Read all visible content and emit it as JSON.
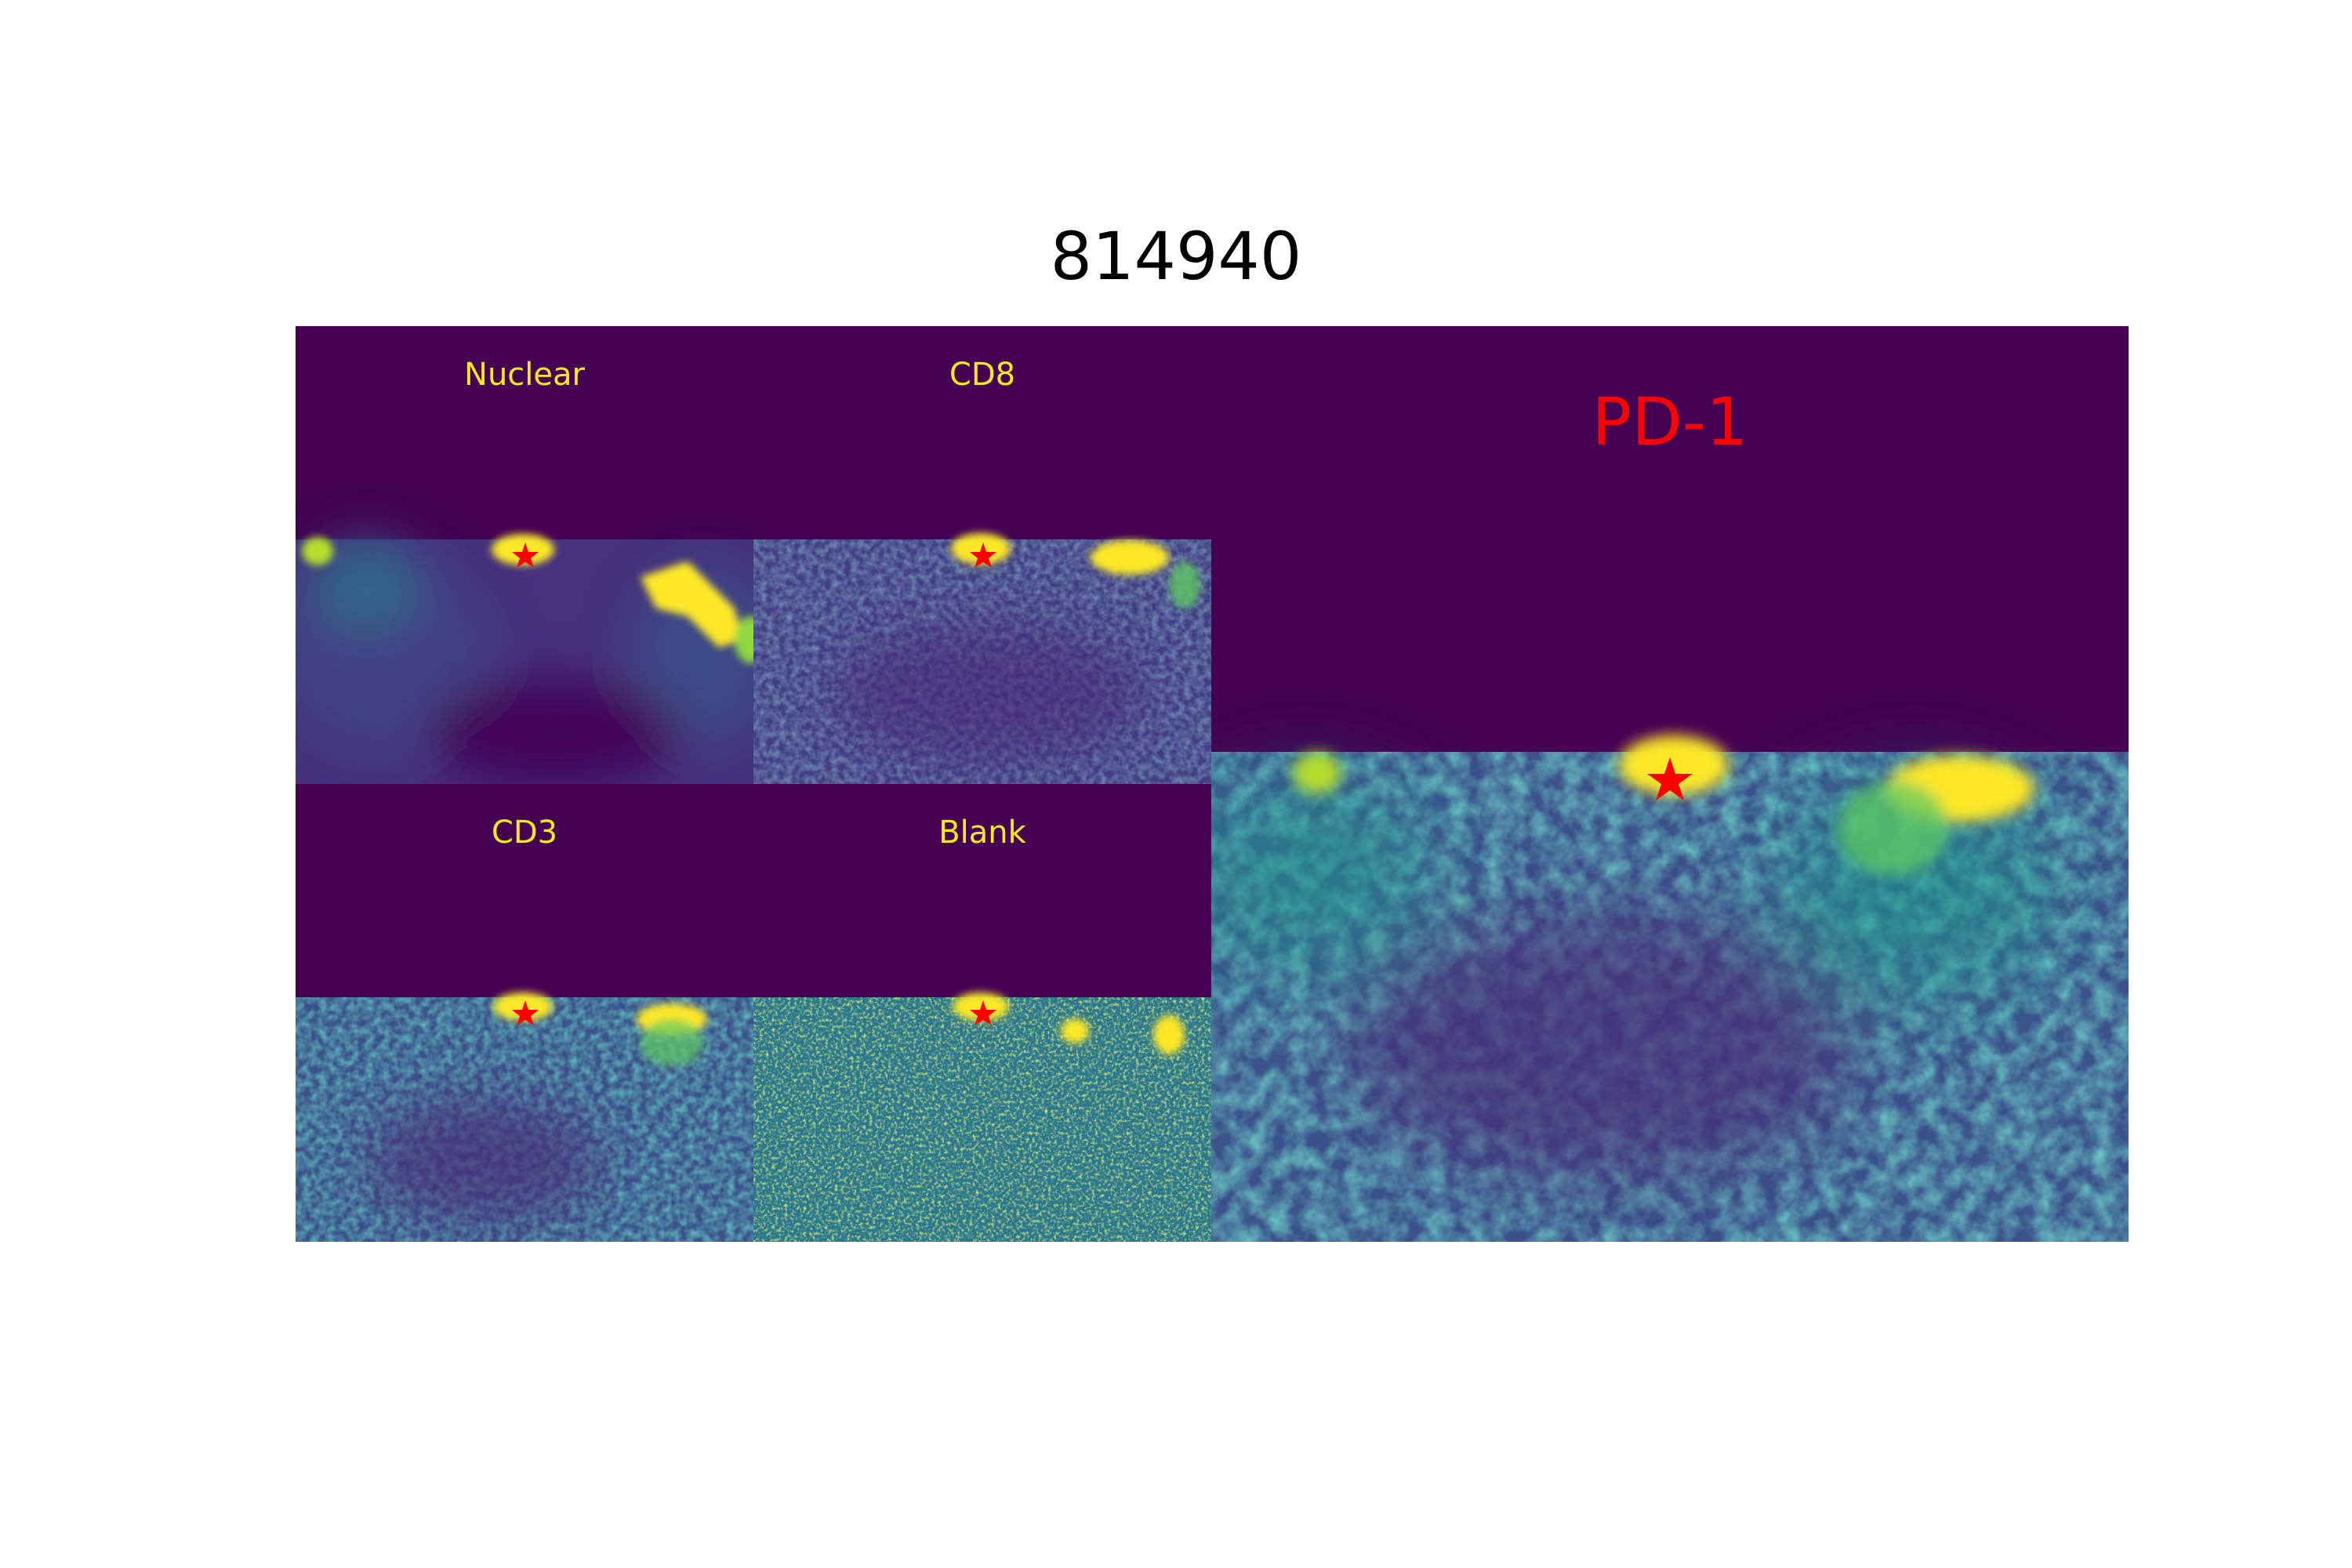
{
  "figure": {
    "title": "814940",
    "background_color": "#440154",
    "marker": {
      "shape": "star",
      "color": "#ff0000"
    }
  },
  "panels": [
    {
      "id": "nuclear",
      "label": "Nuclear",
      "label_color": "#fde725"
    },
    {
      "id": "cd8",
      "label": "CD8",
      "label_color": "#fde725"
    },
    {
      "id": "cd3",
      "label": "CD3",
      "label_color": "#fde725"
    },
    {
      "id": "blank",
      "label": "Blank",
      "label_color": "#fde725"
    },
    {
      "id": "pd1",
      "label": "PD-1",
      "label_color": "#ff0000"
    }
  ],
  "colormap": [
    "#440154",
    "#3b528b",
    "#21918c",
    "#5ec962",
    "#fde725"
  ]
}
